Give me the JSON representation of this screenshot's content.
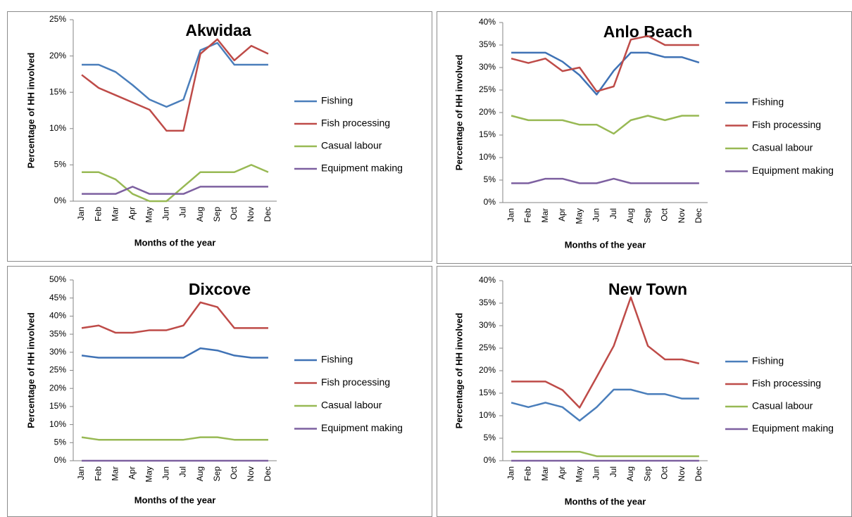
{
  "chart_data": [
    {
      "type": "line",
      "title": "Akwidaa",
      "x_label": "Months of the year",
      "y_label": "Percentage of HH involved",
      "categories": [
        "Jan",
        "Feb",
        "Mar",
        "Apr",
        "May",
        "Jun",
        "Jul",
        "Aug",
        "Sep",
        "Oct",
        "Nov",
        "Dec"
      ],
      "series": [
        {
          "name": "Fishing",
          "color": "#4a7ebb",
          "values": [
            18.8,
            18.8,
            17.8,
            16,
            14,
            13,
            14,
            20.8,
            21.8,
            18.8,
            18.8,
            18.8
          ]
        },
        {
          "name": "Fish processing",
          "color": "#be4b48",
          "values": [
            17.4,
            15.6,
            14.6,
            13.6,
            12.6,
            9.7,
            9.7,
            20.3,
            22.3,
            19.4,
            21.4,
            20.3
          ]
        },
        {
          "name": "Casual labour",
          "color": "#98b954",
          "values": [
            4,
            4,
            3,
            1,
            0,
            0,
            2,
            4,
            4,
            4,
            5,
            4
          ]
        },
        {
          "name": "Equipment making",
          "color": "#7d60a0",
          "values": [
            1,
            1,
            1,
            2,
            1,
            1,
            1,
            2,
            2,
            2,
            2,
            2
          ]
        }
      ],
      "ylim": [
        0,
        25
      ],
      "yticks": [
        {
          "value": 0,
          "label": "0%"
        },
        {
          "value": 5,
          "label": "5%"
        },
        {
          "value": 10,
          "label": "10%"
        },
        {
          "value": 15,
          "label": "15%"
        },
        {
          "value": 20,
          "label": "20%"
        },
        {
          "value": 25,
          "label": "25%"
        }
      ]
    },
    {
      "type": "line",
      "title": "Anlo Beach",
      "x_label": "Months of the year",
      "y_label": "Percentage of HH involved",
      "categories": [
        "Jan",
        "Feb",
        "Mar",
        "Apr",
        "May",
        "Jun",
        "Jul",
        "Aug",
        "Sep",
        "Oct",
        "Nov",
        "Dec"
      ],
      "series": [
        {
          "name": "Fishing",
          "color": "#3f72b5",
          "values": [
            33.3,
            33.3,
            33.3,
            31.3,
            28.3,
            24,
            29.3,
            33.3,
            33.3,
            32.3,
            32.3,
            31.1
          ]
        },
        {
          "name": "Fish processing",
          "color": "#be4b48",
          "values": [
            32,
            31,
            32,
            29.2,
            30,
            24.7,
            25.8,
            36.2,
            37,
            35,
            35,
            35
          ]
        },
        {
          "name": "Casual labour",
          "color": "#98b954",
          "values": [
            19.3,
            18.3,
            18.3,
            18.3,
            17.3,
            17.3,
            15.3,
            18.3,
            19.3,
            18.3,
            19.3,
            19.3
          ]
        },
        {
          "name": "Equipment making",
          "color": "#7d60a0",
          "values": [
            4.3,
            4.3,
            5.3,
            5.3,
            4.3,
            4.3,
            5.3,
            4.3,
            4.3,
            4.3,
            4.3,
            4.3
          ]
        }
      ],
      "ylim": [
        0,
        40
      ],
      "yticks": [
        {
          "value": 0,
          "label": "0%"
        },
        {
          "value": 5,
          "label": "5%"
        },
        {
          "value": 10,
          "label": "10%"
        },
        {
          "value": 15,
          "label": "15%"
        },
        {
          "value": 20,
          "label": "20%"
        },
        {
          "value": 25,
          "label": "25%"
        },
        {
          "value": 30,
          "label": "30%"
        },
        {
          "value": 35,
          "label": "35%"
        },
        {
          "value": 40,
          "label": "40%"
        }
      ]
    },
    {
      "type": "line",
      "title": "Dixcove",
      "x_label": "Months of the year",
      "y_label": "Percentage of HH involved",
      "categories": [
        "Jan",
        "Feb",
        "Mar",
        "Apr",
        "May",
        "Jun",
        "Jul",
        "Aug",
        "Sep",
        "Oct",
        "Nov",
        "Dec"
      ],
      "series": [
        {
          "name": "Fishing",
          "color": "#3f72b5",
          "values": [
            29.1,
            28.5,
            28.5,
            28.5,
            28.5,
            28.5,
            28.5,
            31.1,
            30.5,
            29.1,
            28.5,
            28.5
          ]
        },
        {
          "name": "Fish processing",
          "color": "#be4b48",
          "values": [
            36.7,
            37.4,
            35.4,
            35.4,
            36.1,
            36.1,
            37.4,
            43.8,
            42.5,
            36.7,
            36.7,
            36.7
          ]
        },
        {
          "name": "Casual labour",
          "color": "#98b954",
          "values": [
            6.5,
            5.8,
            5.8,
            5.8,
            5.8,
            5.8,
            5.8,
            6.5,
            6.5,
            5.8,
            5.8,
            5.8
          ]
        },
        {
          "name": "Equipment making",
          "color": "#7d60a0",
          "values": [
            0,
            0,
            0,
            0,
            0,
            0,
            0,
            0,
            0,
            0,
            0,
            0
          ]
        }
      ],
      "ylim": [
        0,
        50
      ],
      "yticks": [
        {
          "value": 0,
          "label": "0%"
        },
        {
          "value": 5,
          "label": "5%"
        },
        {
          "value": 10,
          "label": "10%"
        },
        {
          "value": 15,
          "label": "15%"
        },
        {
          "value": 20,
          "label": "20%"
        },
        {
          "value": 25,
          "label": "25%"
        },
        {
          "value": 30,
          "label": "30%"
        },
        {
          "value": 35,
          "label": "35%"
        },
        {
          "value": 40,
          "label": "40%"
        },
        {
          "value": 45,
          "label": "45%"
        },
        {
          "value": 50,
          "label": "50%"
        }
      ]
    },
    {
      "type": "line",
      "title": "New Town",
      "x_label": "Months of the year",
      "y_label": "Percentage of HH involved",
      "categories": [
        "Jan",
        "Feb",
        "Mar",
        "Apr",
        "May",
        "Jun",
        "Jul",
        "Aug",
        "Sep",
        "Oct",
        "Nov",
        "Dec"
      ],
      "series": [
        {
          "name": "Fishing",
          "color": "#4a7ebb",
          "values": [
            12.9,
            11.9,
            12.9,
            11.9,
            8.9,
            11.9,
            15.8,
            15.8,
            14.8,
            14.8,
            13.8,
            13.8
          ]
        },
        {
          "name": "Fish processing",
          "color": "#be4b48",
          "values": [
            17.6,
            17.6,
            17.6,
            15.7,
            11.8,
            18.6,
            25.5,
            36.3,
            25.5,
            22.5,
            22.5,
            21.6
          ]
        },
        {
          "name": "Casual labour",
          "color": "#98b954",
          "values": [
            2,
            2,
            2,
            2,
            2,
            1,
            1,
            1,
            1,
            1,
            1,
            1
          ]
        },
        {
          "name": "Equipment making",
          "color": "#7d60a0",
          "values": [
            0,
            0,
            0,
            0,
            0,
            0,
            0,
            0,
            0,
            0,
            0,
            0
          ]
        }
      ],
      "ylim": [
        0,
        40
      ],
      "yticks": [
        {
          "value": 0,
          "label": "0%"
        },
        {
          "value": 5,
          "label": "5%"
        },
        {
          "value": 10,
          "label": "10%"
        },
        {
          "value": 15,
          "label": "15%"
        },
        {
          "value": 20,
          "label": "20%"
        },
        {
          "value": 25,
          "label": "25%"
        },
        {
          "value": 30,
          "label": "30%"
        },
        {
          "value": 35,
          "label": "35%"
        },
        {
          "value": 40,
          "label": "40%"
        }
      ]
    }
  ]
}
